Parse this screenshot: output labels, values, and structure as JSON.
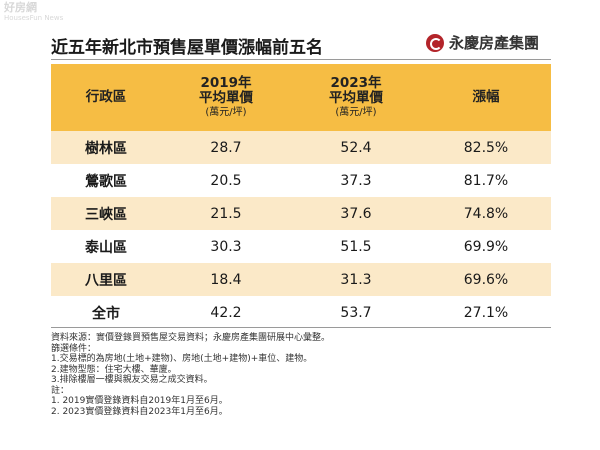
{
  "watermark": {
    "main": "好房網",
    "sub": "HousesFun News"
  },
  "title": "近五年新北市預售屋單價漲幅前五名",
  "brand": "永慶房產集團",
  "table": {
    "headers": [
      {
        "line1": "行政區",
        "line2": "",
        "unit": ""
      },
      {
        "line1": "2019年",
        "line2": "平均單價",
        "unit": "(萬元/坪)"
      },
      {
        "line1": "2023年",
        "line2": "平均單價",
        "unit": "(萬元/坪)"
      },
      {
        "line1": "漲幅",
        "line2": "",
        "unit": ""
      }
    ],
    "rows": [
      {
        "district": "樹林區",
        "y2019": "28.7",
        "y2023": "52.4",
        "growth": "82.5%"
      },
      {
        "district": "鶯歌區",
        "y2019": "20.5",
        "y2023": "37.3",
        "growth": "81.7%"
      },
      {
        "district": "三峽區",
        "y2019": "21.5",
        "y2023": "37.6",
        "growth": "74.8%"
      },
      {
        "district": "泰山區",
        "y2019": "30.3",
        "y2023": "51.5",
        "growth": "69.9%"
      },
      {
        "district": "八里區",
        "y2019": "18.4",
        "y2023": "31.3",
        "growth": "69.6%"
      },
      {
        "district": "全市",
        "y2019": "42.2",
        "y2023": "53.7",
        "growth": "27.1%"
      }
    ]
  },
  "notes": [
    "資料來源：實價登錄買預售屋交易資料；永慶房產集團研展中心彙整。",
    "篩選條件：",
    "1.交易標的為房地(土地+建物)、房地(土地+建物)+車位、建物。",
    "2.建物型態：住宅大樓、華廈。",
    "3.排除樓層一樓與親友交易之成交資料。",
    "註：",
    "1. 2019實價登錄資料自2019年1月至6月。",
    "2. 2023實價登錄資料自2023年1月至6月。"
  ]
}
